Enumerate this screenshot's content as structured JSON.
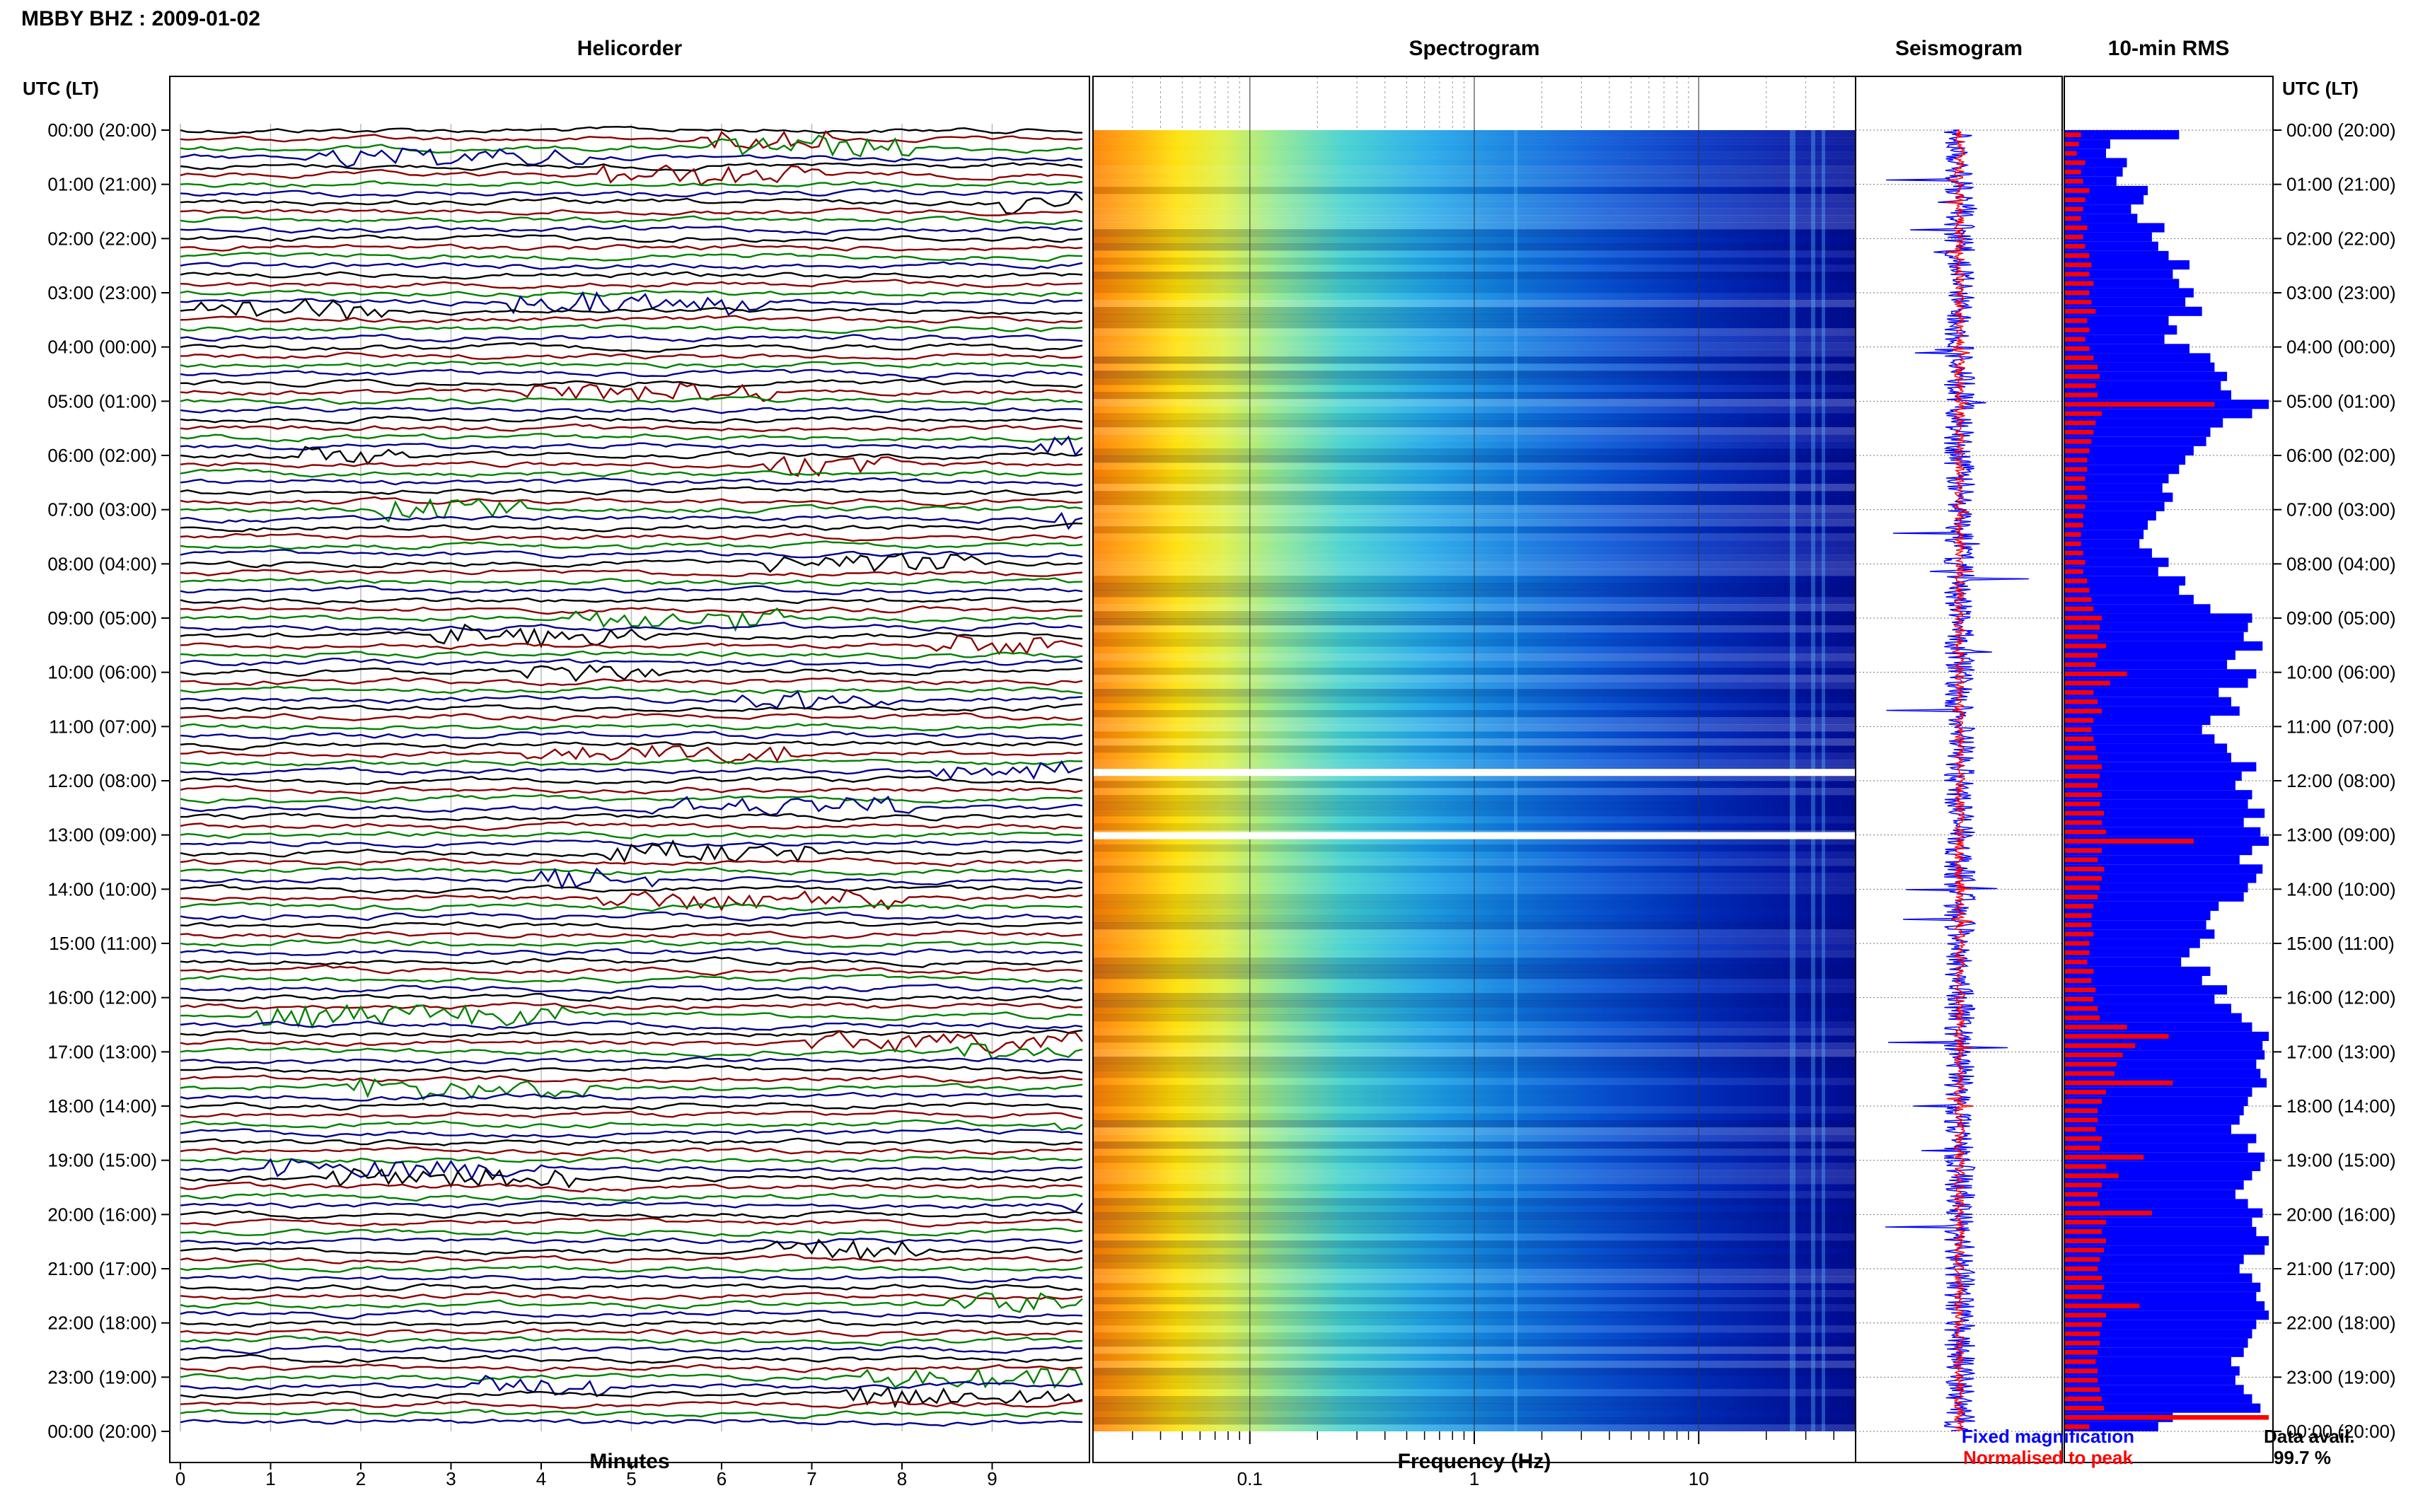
{
  "header": {
    "title": "MBBY BHZ : 2009-01-02"
  },
  "panels": {
    "helicorder": "Helicorder",
    "spectrogram": "Spectrogram",
    "seismogram": "Seismogram",
    "rms": "10-min RMS"
  },
  "axis": {
    "left_label": "UTC (LT)",
    "right_label": "UTC (LT)",
    "x_minutes_label": "Minutes",
    "x_freq_label": "Frequency (Hz)"
  },
  "legend": {
    "fixed": "Fixed magnification",
    "normalised": "Normalised to peak",
    "fixed_color": "#0000ff",
    "normalised_color": "#ff0000"
  },
  "availability": {
    "label": "Data avail.",
    "value": "99.7 %"
  },
  "chart_data": [
    {
      "type": "line",
      "panel": "helicorder",
      "title": "Helicorder",
      "xlabel": "Minutes",
      "x_ticks": [
        0,
        1,
        2,
        3,
        4,
        5,
        6,
        7,
        8,
        9
      ],
      "xlim": [
        0,
        10
      ],
      "y_ticks": [
        "00:00 (20:00)",
        "01:00 (21:00)",
        "02:00 (22:00)",
        "03:00 (23:00)",
        "04:00 (00:00)",
        "05:00 (01:00)",
        "06:00 (02:00)",
        "07:00 (03:00)",
        "08:00 (04:00)",
        "09:00 (05:00)",
        "10:00 (06:00)",
        "11:00 (07:00)",
        "12:00 (08:00)",
        "13:00 (09:00)",
        "14:00 (10:00)",
        "15:00 (11:00)",
        "16:00 (12:00)",
        "17:00 (13:00)",
        "18:00 (14:00)",
        "19:00 (15:00)",
        "20:00 (16:00)",
        "21:00 (17:00)",
        "22:00 (18:00)",
        "23:00 (19:00)",
        "00:00 (20:00)"
      ],
      "trace_colors": [
        "#000000",
        "#8b0000",
        "#008000",
        "#00008b"
      ],
      "traces_per_hour": 6
    },
    {
      "type": "heatmap",
      "panel": "spectrogram",
      "title": "Spectrogram",
      "xlabel": "Frequency (Hz)",
      "x_scale": "log",
      "x_ticks": [
        "0.1",
        "1",
        "10"
      ],
      "xlim": [
        0.02,
        50
      ],
      "colormap": "jet",
      "gaps_utc": [
        "11:50",
        "13:00"
      ]
    },
    {
      "type": "line",
      "panel": "seismogram",
      "title": "Seismogram",
      "series": [
        {
          "name": "Fixed magnification",
          "color": "#0000ff"
        },
        {
          "name": "Normalised to peak",
          "color": "#ff0000"
        }
      ]
    },
    {
      "type": "bar",
      "panel": "rms",
      "title": "10-min RMS",
      "orientation": "horizontal",
      "series": [
        {
          "name": "Fixed magnification",
          "color": "#0000ff",
          "values": [
            0.55,
            0.22,
            0.2,
            0.3,
            0.28,
            0.25,
            0.4,
            0.38,
            0.32,
            0.35,
            0.48,
            0.42,
            0.45,
            0.5,
            0.6,
            0.52,
            0.55,
            0.62,
            0.58,
            0.66,
            0.5,
            0.54,
            0.48,
            0.6,
            0.7,
            0.72,
            0.78,
            0.75,
            0.8,
            0.98,
            0.9,
            0.76,
            0.7,
            0.68,
            0.62,
            0.58,
            0.55,
            0.5,
            0.47,
            0.52,
            0.48,
            0.44,
            0.4,
            0.38,
            0.36,
            0.42,
            0.5,
            0.45,
            0.58,
            0.55,
            0.62,
            0.7,
            0.9,
            0.88,
            0.86,
            0.95,
            0.82,
            0.78,
            0.92,
            0.88,
            0.74,
            0.8,
            0.84,
            0.7,
            0.66,
            0.72,
            0.78,
            0.8,
            0.92,
            0.85,
            0.82,
            0.9,
            0.88,
            0.96,
            0.86,
            0.94,
            0.98,
            0.9,
            0.84,
            0.95,
            0.92,
            0.88,
            0.86,
            0.74,
            0.7,
            0.68,
            0.72,
            0.65,
            0.6,
            0.56,
            0.7,
            0.66,
            0.78,
            0.72,
            0.8,
            0.85,
            0.9,
            0.98,
            0.95,
            0.96,
            0.92,
            0.94,
            0.97,
            0.9,
            0.88,
            0.86,
            0.84,
            0.8,
            0.92,
            0.88,
            0.96,
            0.94,
            0.9,
            0.86,
            0.82,
            0.88,
            0.95,
            0.9,
            0.92,
            0.98,
            0.96,
            0.86,
            0.84,
            0.9,
            0.94,
            0.92,
            0.96,
            0.98,
            0.92,
            0.9,
            0.88,
            0.86,
            0.8,
            0.84,
            0.82,
            0.86,
            0.9,
            0.94,
            0.52,
            0.45
          ]
        },
        {
          "name": "Normalised to peak",
          "color": "#ff0000",
          "values": [
            0.08,
            0.07,
            0.06,
            0.1,
            0.08,
            0.09,
            0.12,
            0.1,
            0.09,
            0.08,
            0.11,
            0.09,
            0.1,
            0.12,
            0.13,
            0.12,
            0.14,
            0.12,
            0.13,
            0.15,
            0.11,
            0.12,
            0.1,
            0.12,
            0.14,
            0.16,
            0.17,
            0.15,
            0.16,
            0.72,
            0.18,
            0.15,
            0.14,
            0.13,
            0.12,
            0.11,
            0.11,
            0.1,
            0.1,
            0.11,
            0.1,
            0.09,
            0.09,
            0.08,
            0.08,
            0.09,
            0.1,
            0.09,
            0.11,
            0.12,
            0.13,
            0.14,
            0.18,
            0.17,
            0.16,
            0.2,
            0.16,
            0.15,
            0.3,
            0.22,
            0.14,
            0.16,
            0.18,
            0.14,
            0.13,
            0.14,
            0.15,
            0.16,
            0.18,
            0.17,
            0.16,
            0.18,
            0.17,
            0.19,
            0.18,
            0.2,
            0.62,
            0.18,
            0.16,
            0.19,
            0.18,
            0.17,
            0.16,
            0.14,
            0.13,
            0.13,
            0.14,
            0.12,
            0.12,
            0.11,
            0.14,
            0.13,
            0.15,
            0.14,
            0.16,
            0.17,
            0.3,
            0.5,
            0.34,
            0.28,
            0.25,
            0.24,
            0.52,
            0.2,
            0.18,
            0.16,
            0.16,
            0.15,
            0.18,
            0.17,
            0.38,
            0.2,
            0.26,
            0.18,
            0.16,
            0.17,
            0.42,
            0.2,
            0.18,
            0.2,
            0.19,
            0.17,
            0.16,
            0.18,
            0.19,
            0.18,
            0.36,
            0.2,
            0.18,
            0.17,
            0.17,
            0.16,
            0.15,
            0.16,
            0.16,
            0.17,
            0.18,
            0.19,
            0.98,
            0.12
          ]
        }
      ]
    }
  ]
}
